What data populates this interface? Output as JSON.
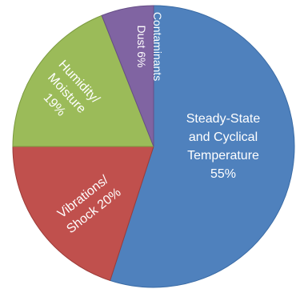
{
  "chart_data": {
    "type": "pie",
    "title": "",
    "legend": "none",
    "slices": [
      {
        "label_lines": [
          "Steady-State",
          "and Cyclical",
          "Temperature",
          "55%"
        ],
        "value": 55,
        "color": "#4f81bd",
        "stroke": "#3a6ba5"
      },
      {
        "label_lines": [
          "Vibrations/",
          "Shock 20%"
        ],
        "value": 20,
        "color": "#c0504d",
        "stroke": "#9c3b38"
      },
      {
        "label_lines": [
          "Humidity/",
          "Moisture",
          "19%"
        ],
        "value": 19,
        "color": "#9bbb59",
        "stroke": "#7b9a3f"
      },
      {
        "label_lines": [
          "Contaminants",
          "Dust 6%"
        ],
        "value": 6,
        "color": "#8064a2",
        "stroke": "#664e86"
      }
    ]
  }
}
